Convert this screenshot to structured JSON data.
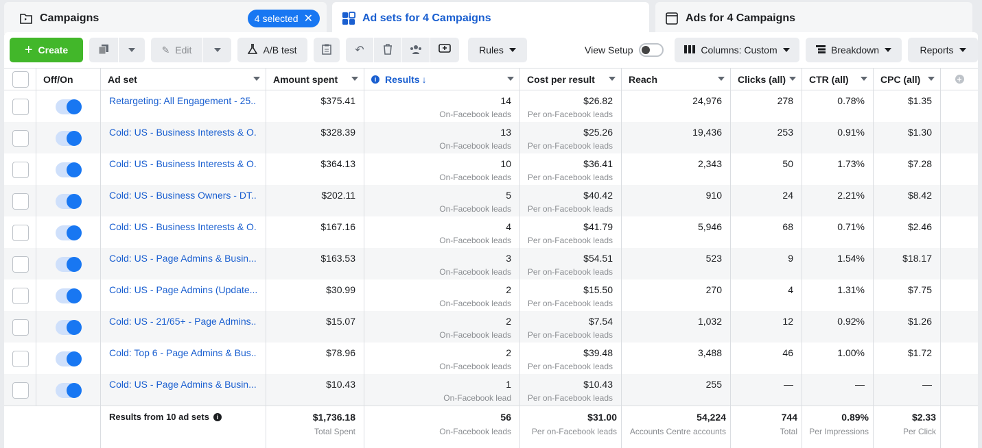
{
  "tabs": {
    "campaigns": {
      "label": "Campaigns",
      "selected": "4 selected"
    },
    "adsets": {
      "label": "Ad sets for 4 Campaigns"
    },
    "ads": {
      "label": "Ads for 4 Campaigns"
    }
  },
  "toolbar": {
    "create": "Create",
    "edit": "Edit",
    "ab_test": "A/B test",
    "rules": "Rules",
    "view_setup": "View Setup",
    "columns": "Columns: Custom",
    "breakdown": "Breakdown",
    "reports": "Reports"
  },
  "columns": [
    "Off/On",
    "Ad set",
    "Amount spent",
    "Results",
    "Cost per result",
    "Reach",
    "Clicks (all)",
    "CTR (all)",
    "CPC (all)"
  ],
  "rows": [
    {
      "name": "Retargeting: All Engagement - 25...",
      "spent": "$375.41",
      "results": "14",
      "results_sub": "On-Facebook leads",
      "cpr": "$26.82",
      "cpr_sub": "Per on-Facebook leads",
      "reach": "24,976",
      "clicks": "278",
      "ctr": "0.78%",
      "cpc": "$1.35"
    },
    {
      "name": "Cold: US - Business Interests & O...",
      "spent": "$328.39",
      "results": "13",
      "results_sub": "On-Facebook leads",
      "cpr": "$25.26",
      "cpr_sub": "Per on-Facebook leads",
      "reach": "19,436",
      "clicks": "253",
      "ctr": "0.91%",
      "cpc": "$1.30"
    },
    {
      "name": "Cold: US - Business Interests & O...",
      "spent": "$364.13",
      "results": "10",
      "results_sub": "On-Facebook leads",
      "cpr": "$36.41",
      "cpr_sub": "Per on-Facebook leads",
      "reach": "2,343",
      "clicks": "50",
      "ctr": "1.73%",
      "cpc": "$7.28"
    },
    {
      "name": "Cold: US - Business Owners - DT...",
      "spent": "$202.11",
      "results": "5",
      "results_sub": "On-Facebook leads",
      "cpr": "$40.42",
      "cpr_sub": "Per on-Facebook leads",
      "reach": "910",
      "clicks": "24",
      "ctr": "2.21%",
      "cpc": "$8.42"
    },
    {
      "name": "Cold: US - Business Interests & O...",
      "spent": "$167.16",
      "results": "4",
      "results_sub": "On-Facebook leads",
      "cpr": "$41.79",
      "cpr_sub": "Per on-Facebook leads",
      "reach": "5,946",
      "clicks": "68",
      "ctr": "0.71%",
      "cpc": "$2.46"
    },
    {
      "name": "Cold: US - Page Admins & Busin...",
      "spent": "$163.53",
      "results": "3",
      "results_sub": "On-Facebook leads",
      "cpr": "$54.51",
      "cpr_sub": "Per on-Facebook leads",
      "reach": "523",
      "clicks": "9",
      "ctr": "1.54%",
      "cpc": "$18.17"
    },
    {
      "name": "Cold: US - Page Admins (Update...",
      "spent": "$30.99",
      "results": "2",
      "results_sub": "On-Facebook leads",
      "cpr": "$15.50",
      "cpr_sub": "Per on-Facebook leads",
      "reach": "270",
      "clicks": "4",
      "ctr": "1.31%",
      "cpc": "$7.75"
    },
    {
      "name": "Cold: US - 21/65+ - Page Admins...",
      "spent": "$15.07",
      "results": "2",
      "results_sub": "On-Facebook leads",
      "cpr": "$7.54",
      "cpr_sub": "Per on-Facebook leads",
      "reach": "1,032",
      "clicks": "12",
      "ctr": "0.92%",
      "cpc": "$1.26"
    },
    {
      "name": "Cold: Top 6 - Page Admins & Bus...",
      "spent": "$78.96",
      "results": "2",
      "results_sub": "On-Facebook leads",
      "cpr": "$39.48",
      "cpr_sub": "Per on-Facebook leads",
      "reach": "3,488",
      "clicks": "46",
      "ctr": "1.00%",
      "cpc": "$1.72"
    },
    {
      "name": "Cold: US - Page Admins & Busin...",
      "spent": "$10.43",
      "results": "1",
      "results_sub": "On-Facebook lead",
      "cpr": "$10.43",
      "cpr_sub": "Per on-Facebook leads",
      "reach": "255",
      "clicks": "—",
      "ctr": "—",
      "cpc": "—"
    }
  ],
  "footer": {
    "label": "Results from 10 ad sets",
    "spent": "$1,736.18",
    "spent_sub": "Total Spent",
    "results": "56",
    "results_sub": "On-Facebook leads",
    "cpr": "$31.00",
    "cpr_sub": "Per on-Facebook leads",
    "reach": "54,224",
    "reach_sub": "Accounts Centre accounts",
    "clicks": "744",
    "clicks_sub": "Total",
    "ctr": "0.89%",
    "ctr_sub": "Per Impressions",
    "cpc": "$2.33",
    "cpc_sub": "Per Click"
  },
  "colors": {
    "accent": "#1877f2",
    "create": "#42b72a",
    "link": "#1a5fd0"
  }
}
